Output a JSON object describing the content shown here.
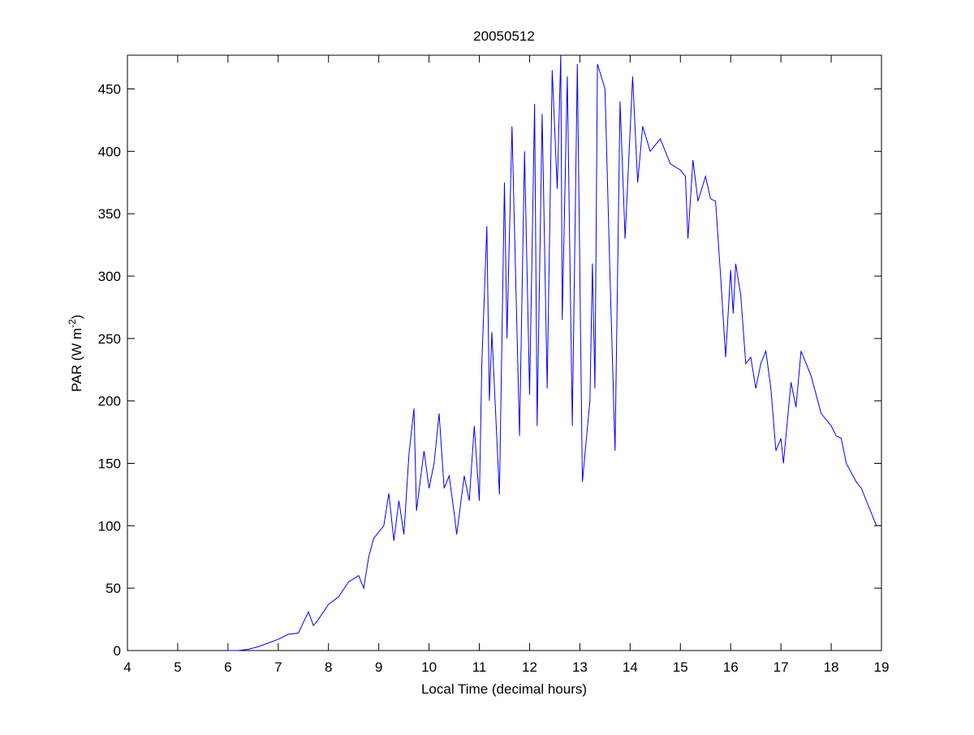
{
  "chart_data": {
    "type": "line",
    "title": "20050512",
    "xlabel": "Local Time (decimal hours)",
    "ylabel": [
      "PAR (W m",
      "-2",
      ")"
    ],
    "color": "#0000ff",
    "xlim": [
      4,
      19
    ],
    "xticks": [
      4,
      5,
      6,
      7,
      8,
      9,
      10,
      11,
      12,
      13,
      14,
      15,
      16,
      17,
      18,
      19
    ],
    "ylim": [
      0,
      477
    ],
    "yticks": [
      0,
      50,
      100,
      150,
      200,
      250,
      300,
      350,
      400,
      450
    ],
    "x": [
      6.0,
      6.2,
      6.4,
      6.6,
      6.8,
      7.0,
      7.2,
      7.4,
      7.6,
      7.7,
      7.8,
      8.0,
      8.2,
      8.4,
      8.6,
      8.7,
      8.8,
      8.9,
      9.0,
      9.1,
      9.2,
      9.3,
      9.4,
      9.5,
      9.6,
      9.7,
      9.75,
      9.9,
      10.0,
      10.1,
      10.2,
      10.3,
      10.4,
      10.5,
      10.55,
      10.7,
      10.8,
      10.9,
      11.0,
      11.05,
      11.15,
      11.2,
      11.25,
      11.4,
      11.5,
      11.55,
      11.65,
      11.8,
      11.9,
      12.0,
      12.1,
      12.15,
      12.25,
      12.35,
      12.45,
      12.55,
      12.62,
      12.65,
      12.75,
      12.85,
      12.95,
      13.05,
      13.2,
      13.25,
      13.3,
      13.35,
      13.5,
      13.6,
      13.7,
      13.8,
      13.9,
      14.05,
      14.15,
      14.25,
      14.4,
      14.6,
      14.8,
      15.0,
      15.1,
      15.15,
      15.25,
      15.35,
      15.5,
      15.6,
      15.7,
      15.8,
      15.9,
      16.0,
      16.05,
      16.1,
      16.2,
      16.3,
      16.4,
      16.5,
      16.6,
      16.7,
      16.8,
      16.9,
      17.0,
      17.05,
      17.2,
      17.3,
      17.4,
      17.6,
      17.8,
      18.0,
      18.1,
      18.2,
      18.3,
      18.5,
      18.6,
      18.9
    ],
    "values": [
      0,
      0,
      1,
      3,
      6,
      9,
      13,
      14,
      31,
      20,
      25,
      37,
      43,
      55,
      60,
      50,
      75,
      90,
      95,
      100,
      126,
      88,
      120,
      93,
      157,
      194,
      112,
      160,
      130,
      150,
      190,
      130,
      140,
      110,
      93,
      140,
      120,
      180,
      120,
      230,
      340,
      200,
      255,
      125,
      375,
      250,
      420,
      172,
      400,
      205,
      438,
      180,
      430,
      210,
      465,
      370,
      477,
      265,
      460,
      180,
      470,
      135,
      200,
      310,
      210,
      470,
      450,
      300,
      160,
      440,
      330,
      460,
      375,
      420,
      400,
      410,
      390,
      385,
      380,
      330,
      393,
      360,
      380,
      362,
      360,
      300,
      235,
      305,
      270,
      310,
      285,
      230,
      235,
      210,
      230,
      240,
      210,
      160,
      170,
      150,
      215,
      195,
      240,
      220,
      190,
      180,
      172,
      170,
      150,
      135,
      130,
      100
    ]
  }
}
